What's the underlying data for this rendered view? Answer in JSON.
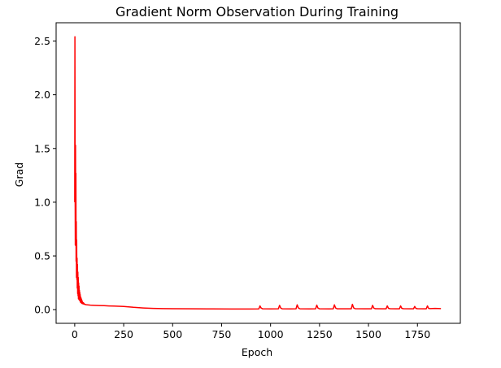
{
  "chart_data": {
    "type": "line",
    "title": "Gradient Norm Observation During Training",
    "xlabel": "Epoch",
    "ylabel": "Grad",
    "xlim": [
      -95,
      1969
    ],
    "ylim": [
      -0.127,
      2.67
    ],
    "xticks": [
      0,
      250,
      500,
      750,
      1000,
      1250,
      1500,
      1750
    ],
    "xtick_labels": [
      "0",
      "250",
      "500",
      "750",
      "1000",
      "1250",
      "1500",
      "1750"
    ],
    "yticks": [
      0.0,
      0.5,
      1.0,
      1.5,
      2.0,
      2.5
    ],
    "ytick_labels": [
      "0.0",
      "0.5",
      "1.0",
      "1.5",
      "2.0",
      "2.5"
    ],
    "grid": false,
    "legend": "none",
    "series": [
      {
        "color": "#ff0000",
        "x": [
          0,
          1,
          2,
          3,
          4,
          5,
          6,
          7,
          8,
          9,
          10,
          11,
          12,
          13,
          14,
          15,
          16,
          17,
          18,
          19,
          20,
          21,
          22,
          23,
          24,
          25,
          26,
          27,
          28,
          29,
          30,
          31,
          32,
          33,
          34,
          35,
          36,
          37,
          38,
          39,
          40,
          42,
          44,
          46,
          48,
          50,
          55,
          60,
          65,
          70,
          80,
          90,
          100,
          125,
          150,
          175,
          200,
          250,
          300,
          350,
          400,
          450,
          500,
          600,
          700,
          800,
          900,
          940,
          946,
          952,
          960,
          1000,
          1040,
          1046,
          1052,
          1060,
          1100,
          1130,
          1136,
          1142,
          1150,
          1200,
          1230,
          1236,
          1242,
          1250,
          1300,
          1320,
          1326,
          1332,
          1340,
          1380,
          1412,
          1418,
          1424,
          1432,
          1480,
          1515,
          1521,
          1527,
          1535,
          1570,
          1590,
          1596,
          1602,
          1610,
          1640,
          1658,
          1664,
          1670,
          1678,
          1710,
          1730,
          1736,
          1742,
          1750,
          1780,
          1795,
          1801,
          1807,
          1815,
          1840,
          1870
        ],
        "values": [
          1.0,
          2.54,
          1.2,
          0.6,
          1.53,
          0.7,
          1.27,
          0.45,
          0.82,
          0.3,
          0.65,
          0.28,
          0.48,
          0.2,
          0.42,
          0.15,
          0.35,
          0.13,
          0.3,
          0.1,
          0.25,
          0.12,
          0.22,
          0.09,
          0.18,
          0.1,
          0.16,
          0.08,
          0.14,
          0.07,
          0.12,
          0.07,
          0.11,
          0.065,
          0.1,
          0.06,
          0.09,
          0.058,
          0.08,
          0.056,
          0.07,
          0.055,
          0.065,
          0.052,
          0.058,
          0.05,
          0.048,
          0.046,
          0.045,
          0.044,
          0.042,
          0.041,
          0.04,
          0.038,
          0.037,
          0.035,
          0.034,
          0.03,
          0.022,
          0.016,
          0.012,
          0.01,
          0.009,
          0.008,
          0.007,
          0.006,
          0.006,
          0.007,
          0.035,
          0.015,
          0.008,
          0.007,
          0.008,
          0.04,
          0.015,
          0.008,
          0.007,
          0.008,
          0.045,
          0.016,
          0.008,
          0.007,
          0.008,
          0.042,
          0.015,
          0.008,
          0.007,
          0.008,
          0.045,
          0.016,
          0.008,
          0.008,
          0.008,
          0.05,
          0.017,
          0.009,
          0.008,
          0.008,
          0.04,
          0.015,
          0.009,
          0.008,
          0.008,
          0.035,
          0.013,
          0.009,
          0.008,
          0.008,
          0.035,
          0.013,
          0.009,
          0.008,
          0.008,
          0.03,
          0.012,
          0.009,
          0.008,
          0.008,
          0.035,
          0.012,
          0.01,
          0.012,
          0.01
        ]
      }
    ]
  }
}
